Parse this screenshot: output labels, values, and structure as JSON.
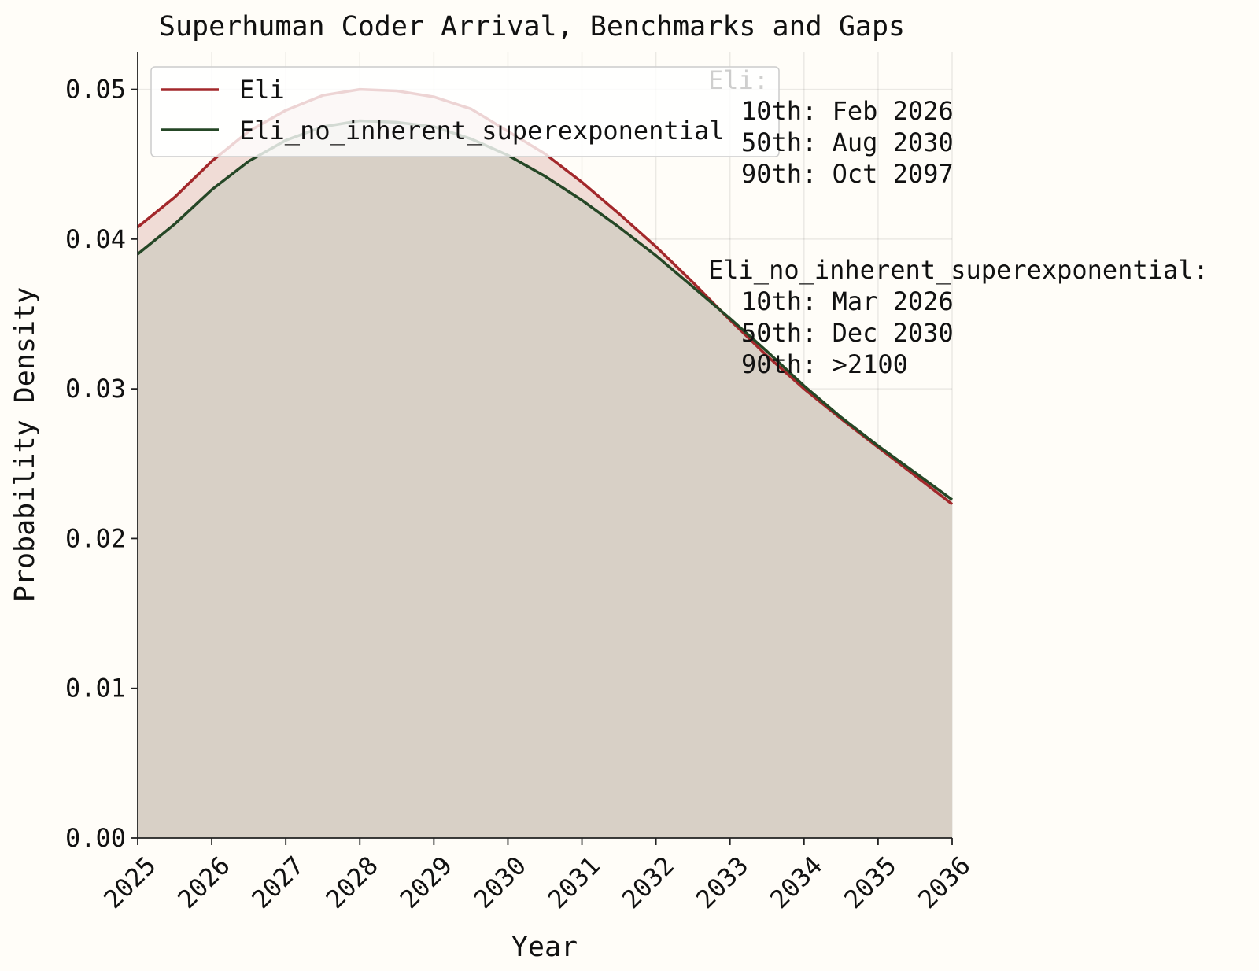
{
  "chart_data": {
    "type": "area",
    "title": "Superhuman Coder Arrival, Benchmarks and Gaps",
    "xlabel": "Year",
    "ylabel": "Probability Density",
    "xlim": [
      2025,
      2036
    ],
    "ylim": [
      0,
      0.0525
    ],
    "xticks": [
      2025,
      2026,
      2027,
      2028,
      2029,
      2030,
      2031,
      2032,
      2033,
      2034,
      2035,
      2036
    ],
    "yticks": [
      0.0,
      0.01,
      0.02,
      0.03,
      0.04,
      0.05
    ],
    "ytick_labels": [
      "0.00",
      "0.01",
      "0.02",
      "0.03",
      "0.04",
      "0.05"
    ],
    "grid": true,
    "legend_position": "upper-left",
    "series": [
      {
        "name": "Eli",
        "color": "#a3282b",
        "fill": "#f0dcd6",
        "x": [
          2025.0,
          2025.5,
          2026.0,
          2026.5,
          2027.0,
          2027.5,
          2028.0,
          2028.5,
          2029.0,
          2029.5,
          2030.0,
          2030.5,
          2031.0,
          2031.5,
          2032.0,
          2032.5,
          2033.0,
          2033.5,
          2034.0,
          2034.5,
          2035.0,
          2035.5,
          2036.0
        ],
        "y": [
          0.0408,
          0.0428,
          0.0452,
          0.0472,
          0.0486,
          0.0496,
          0.05,
          0.0499,
          0.0495,
          0.0487,
          0.0472,
          0.0457,
          0.0438,
          0.0417,
          0.0395,
          0.0371,
          0.0346,
          0.0322,
          0.03,
          0.028,
          0.0261,
          0.0242,
          0.0223
        ]
      },
      {
        "name": "Eli_no_inherent_superexponential",
        "color": "#254726",
        "fill": "#d8d0c6",
        "x": [
          2025.0,
          2025.5,
          2026.0,
          2026.5,
          2027.0,
          2027.5,
          2028.0,
          2028.5,
          2029.0,
          2029.5,
          2030.0,
          2030.5,
          2031.0,
          2031.5,
          2032.0,
          2032.5,
          2033.0,
          2033.5,
          2034.0,
          2034.5,
          2035.0,
          2035.5,
          2036.0
        ],
        "y": [
          0.039,
          0.041,
          0.0433,
          0.0452,
          0.0466,
          0.0475,
          0.0479,
          0.0478,
          0.0475,
          0.0467,
          0.0456,
          0.0442,
          0.0426,
          0.0408,
          0.0389,
          0.0368,
          0.0347,
          0.0325,
          0.0302,
          0.0281,
          0.0262,
          0.0244,
          0.0226
        ]
      }
    ],
    "annotations": [
      {
        "label": "Eli:",
        "lines": [
          "10th: Feb 2026",
          "50th: Aug 2030",
          "90th: Oct 2097"
        ]
      },
      {
        "label": "Eli_no_inherent_superexponential:",
        "lines": [
          "10th: Mar 2026",
          "50th: Dec 2030",
          "90th: >2100"
        ]
      }
    ]
  }
}
